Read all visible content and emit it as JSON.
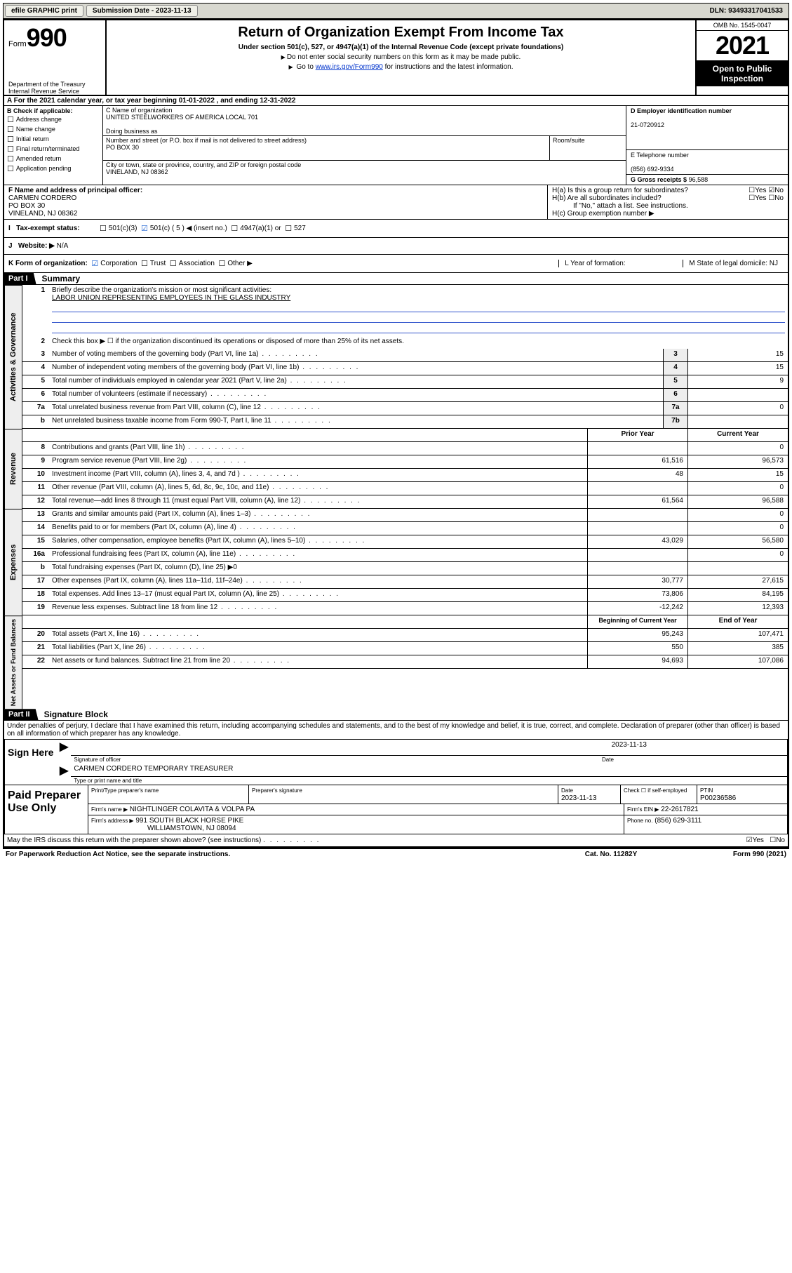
{
  "topbar": {
    "efile": "efile GRAPHIC print",
    "submission": "Submission Date - 2023-11-13",
    "dln": "DLN: 93493317041533"
  },
  "header": {
    "form_label": "Form",
    "form_num": "990",
    "dept": "Department of the Treasury Internal Revenue Service",
    "title": "Return of Organization Exempt From Income Tax",
    "subtitle": "Under section 501(c), 527, or 4947(a)(1) of the Internal Revenue Code (except private foundations)",
    "note1": "Do not enter social security numbers on this form as it may be made public.",
    "note2_pre": "Go to ",
    "note2_link": "www.irs.gov/Form990",
    "note2_post": " for instructions and the latest information.",
    "omb": "OMB No. 1545-0047",
    "year": "2021",
    "inspect": "Open to Public Inspection"
  },
  "A": {
    "text": "For the 2021 calendar year, or tax year beginning 01-01-2022   , and ending 12-31-2022"
  },
  "B": {
    "label": "B Check if applicable:",
    "opts": [
      "Address change",
      "Name change",
      "Initial return",
      "Final return/terminated",
      "Amended return",
      "Application pending"
    ]
  },
  "C": {
    "name_label": "C Name of organization",
    "name": "UNITED STEELWORKERS OF AMERICA LOCAL 701",
    "dba_label": "Doing business as",
    "dba": "",
    "addr_label": "Number and street (or P.O. box if mail is not delivered to street address)",
    "room_label": "Room/suite",
    "addr": "PO BOX 30",
    "city_label": "City or town, state or province, country, and ZIP or foreign postal code",
    "city": "VINELAND, NJ  08362"
  },
  "D": {
    "label": "D Employer identification number",
    "ein": "21-0720912"
  },
  "E": {
    "label": "E Telephone number",
    "phone": "(856) 692-9334"
  },
  "G": {
    "label": "G Gross receipts $",
    "amount": "96,588"
  },
  "F": {
    "label": "F Name and address of principal officer:",
    "name": "CARMEN CORDERO",
    "addr1": "PO BOX 30",
    "addr2": "VINELAND, NJ  08362"
  },
  "H": {
    "a": "H(a)  Is this a group return for subordinates?",
    "a_ans": "No",
    "b": "H(b)  Are all subordinates included?",
    "b_note": "If \"No,\" attach a list. See instructions.",
    "c": "H(c)  Group exemption number ▶"
  },
  "I": {
    "label": "Tax-exempt status:",
    "o1": "501(c)(3)",
    "o2": "501(c) ( 5 ) ◀ (insert no.)",
    "o3": "4947(a)(1) or",
    "o4": "527"
  },
  "J": {
    "label": "Website: ▶",
    "val": "N/A"
  },
  "K": {
    "label": "K Form of organization:",
    "opts": [
      "Corporation",
      "Trust",
      "Association",
      "Other ▶"
    ],
    "L": "L Year of formation:",
    "M": "M State of legal domicile: NJ"
  },
  "part1": {
    "title": "Part I",
    "name": "Summary",
    "l1": "Briefly describe the organization's mission or most significant activities:",
    "l1_val": "LABOR UNION REPRESENTING EMPLOYEES IN THE GLASS INDUSTRY",
    "l2": "Check this box ▶ ☐  if the organization discontinued its operations or disposed of more than 25% of its net assets.",
    "lines_gov": [
      {
        "n": "3",
        "t": "Number of voting members of the governing body (Part VI, line 1a)",
        "box": "3",
        "v": "15"
      },
      {
        "n": "4",
        "t": "Number of independent voting members of the governing body (Part VI, line 1b)",
        "box": "4",
        "v": "15"
      },
      {
        "n": "5",
        "t": "Total number of individuals employed in calendar year 2021 (Part V, line 2a)",
        "box": "5",
        "v": "9"
      },
      {
        "n": "6",
        "t": "Total number of volunteers (estimate if necessary)",
        "box": "6",
        "v": ""
      },
      {
        "n": "7a",
        "t": "Total unrelated business revenue from Part VIII, column (C), line 12",
        "box": "7a",
        "v": "0"
      },
      {
        "n": "b",
        "t": "Net unrelated business taxable income from Form 990-T, Part I, line 11",
        "box": "7b",
        "v": ""
      }
    ],
    "col_py": "Prior Year",
    "col_cy": "Current Year",
    "lines_rev": [
      {
        "n": "8",
        "t": "Contributions and grants (Part VIII, line 1h)",
        "py": "",
        "cy": "0"
      },
      {
        "n": "9",
        "t": "Program service revenue (Part VIII, line 2g)",
        "py": "61,516",
        "cy": "96,573"
      },
      {
        "n": "10",
        "t": "Investment income (Part VIII, column (A), lines 3, 4, and 7d )",
        "py": "48",
        "cy": "15"
      },
      {
        "n": "11",
        "t": "Other revenue (Part VIII, column (A), lines 5, 6d, 8c, 9c, 10c, and 11e)",
        "py": "",
        "cy": "0"
      },
      {
        "n": "12",
        "t": "Total revenue—add lines 8 through 11 (must equal Part VIII, column (A), line 12)",
        "py": "61,564",
        "cy": "96,588"
      }
    ],
    "lines_exp": [
      {
        "n": "13",
        "t": "Grants and similar amounts paid (Part IX, column (A), lines 1–3)",
        "py": "",
        "cy": "0"
      },
      {
        "n": "14",
        "t": "Benefits paid to or for members (Part IX, column (A), line 4)",
        "py": "",
        "cy": "0"
      },
      {
        "n": "15",
        "t": "Salaries, other compensation, employee benefits (Part IX, column (A), lines 5–10)",
        "py": "43,029",
        "cy": "56,580"
      },
      {
        "n": "16a",
        "t": "Professional fundraising fees (Part IX, column (A), line 11e)",
        "py": "",
        "cy": "0"
      },
      {
        "n": "b",
        "t": "Total fundraising expenses (Part IX, column (D), line 25) ▶0",
        "py": "shade",
        "cy": "shade"
      },
      {
        "n": "17",
        "t": "Other expenses (Part IX, column (A), lines 11a–11d, 11f–24e)",
        "py": "30,777",
        "cy": "27,615"
      },
      {
        "n": "18",
        "t": "Total expenses. Add lines 13–17 (must equal Part IX, column (A), line 25)",
        "py": "73,806",
        "cy": "84,195"
      },
      {
        "n": "19",
        "t": "Revenue less expenses. Subtract line 18 from line 12",
        "py": "-12,242",
        "cy": "12,393"
      }
    ],
    "col_boy": "Beginning of Current Year",
    "col_eoy": "End of Year",
    "lines_na": [
      {
        "n": "20",
        "t": "Total assets (Part X, line 16)",
        "py": "95,243",
        "cy": "107,471"
      },
      {
        "n": "21",
        "t": "Total liabilities (Part X, line 26)",
        "py": "550",
        "cy": "385"
      },
      {
        "n": "22",
        "t": "Net assets or fund balances. Subtract line 21 from line 20",
        "py": "94,693",
        "cy": "107,086"
      }
    ]
  },
  "part2": {
    "title": "Part II",
    "name": "Signature Block",
    "decl": "Under penalties of perjury, I declare that I have examined this return, including accompanying schedules and statements, and to the best of my knowledge and belief, it is true, correct, and complete. Declaration of preparer (other than officer) is based on all information of which preparer has any knowledge."
  },
  "sign": {
    "label": "Sign Here",
    "sig_label": "Signature of officer",
    "date_label": "Date",
    "date": "2023-11-13",
    "name": "CARMEN CORDERO  TEMPORARY TREASURER",
    "name_label": "Type or print name and title"
  },
  "paid": {
    "label": "Paid Preparer Use Only",
    "h1": "Print/Type preparer's name",
    "h2": "Preparer's signature",
    "h3": "Date",
    "date": "2023-11-13",
    "h4_a": "Check ☐ if self-employed",
    "h5": "PTIN",
    "ptin": "P00236586",
    "firm_label": "Firm's name    ▶",
    "firm": "NIGHTLINGER COLAVITA & VOLPA PA",
    "ein_label": "Firm's EIN ▶",
    "ein": "22-2617821",
    "addr_label": "Firm's address ▶",
    "addr1": "991 SOUTH BLACK HORSE PIKE",
    "addr2": "WILLIAMSTOWN, NJ  08094",
    "phone_label": "Phone no.",
    "phone": "(856) 629-3111"
  },
  "discuss": {
    "text": "May the IRS discuss this return with the preparer shown above? (see instructions)",
    "ans": "Yes"
  },
  "footer": {
    "left": "For Paperwork Reduction Act Notice, see the separate instructions.",
    "mid": "Cat. No. 11282Y",
    "right": "Form 990 (2021)"
  }
}
